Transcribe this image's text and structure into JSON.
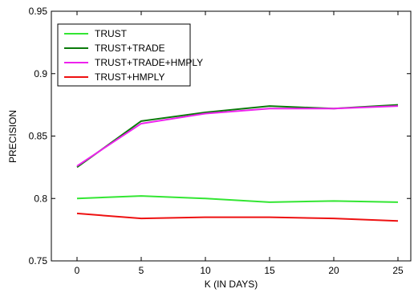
{
  "chart_data": {
    "type": "line",
    "title": "",
    "xlabel": "K (IN DAYS)",
    "ylabel": "PRECISION",
    "xlim": [
      -2,
      26
    ],
    "ylim": [
      0.75,
      0.95
    ],
    "xticks": [
      0,
      5,
      10,
      15,
      20,
      25
    ],
    "yticks": [
      0.75,
      0.8,
      0.85,
      0.9,
      0.95
    ],
    "ytick_labels": [
      "0.75",
      "0.8",
      "0.85",
      "0.9",
      "0.95"
    ],
    "grid": false,
    "legend_position": "top-left",
    "x": [
      0,
      5,
      10,
      15,
      20,
      25
    ],
    "series": [
      {
        "name": "TRUST",
        "color": "#33e633",
        "values": [
          0.8,
          0.802,
          0.8,
          0.797,
          0.798,
          0.797
        ]
      },
      {
        "name": "TRUST+TRADE",
        "color": "#0b7a0b",
        "values": [
          0.825,
          0.862,
          0.869,
          0.874,
          0.872,
          0.875
        ]
      },
      {
        "name": "TRUST+TRADE+HMPLY",
        "color": "#ee22ee",
        "values": [
          0.826,
          0.86,
          0.868,
          0.872,
          0.872,
          0.874
        ]
      },
      {
        "name": "TRUST+HMPLY",
        "color": "#ee1111",
        "values": [
          0.788,
          0.784,
          0.785,
          0.785,
          0.784,
          0.782
        ]
      }
    ]
  }
}
